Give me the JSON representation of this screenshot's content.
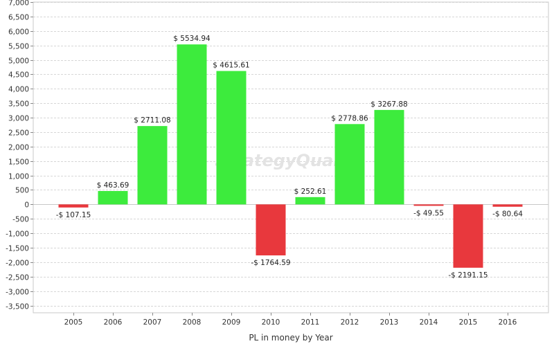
{
  "chart_data": {
    "type": "bar",
    "title": "",
    "xlabel": "PL in money by Year",
    "ylabel": "",
    "categories": [
      "2005",
      "2006",
      "2007",
      "2008",
      "2009",
      "2010",
      "2011",
      "2012",
      "2013",
      "2014",
      "2015",
      "2016"
    ],
    "values": [
      -107.15,
      463.69,
      2711.08,
      5534.94,
      4615.61,
      -1764.59,
      252.61,
      2778.86,
      3267.88,
      -49.55,
      -2191.15,
      -80.64
    ],
    "data_labels": [
      "-$ 107.15",
      "$ 463.69",
      "$ 2711.08",
      "$ 5534.94",
      "$ 4615.61",
      "-$ 1764.59",
      "$ 252.61",
      "$ 2778.86",
      "$ 3267.88",
      "-$ 49.55",
      "-$ 2191.15",
      "-$ 80.64"
    ],
    "ylim": [
      -3750,
      7000
    ],
    "y_ticks": [
      7000,
      6500,
      6000,
      5500,
      5000,
      4500,
      4000,
      3500,
      3000,
      2500,
      2000,
      1500,
      1000,
      500,
      0,
      -500,
      -1000,
      -1500,
      -2000,
      -2500,
      -3000,
      -3500
    ],
    "y_tick_labels": [
      "7,000",
      "6,500",
      "6,000",
      "5,500",
      "5,000",
      "4,500",
      "4,000",
      "3,500",
      "3,000",
      "2,500",
      "2,000",
      "1,500",
      "1,000",
      "500",
      "0",
      "-500",
      "-1,000",
      "-1,500",
      "-2,000",
      "-2,500",
      "-3,000",
      "-3,500"
    ],
    "grid": true,
    "positive_color": "#3deb3d",
    "negative_color": "#e8383d",
    "watermark": "StrategyQuant"
  }
}
